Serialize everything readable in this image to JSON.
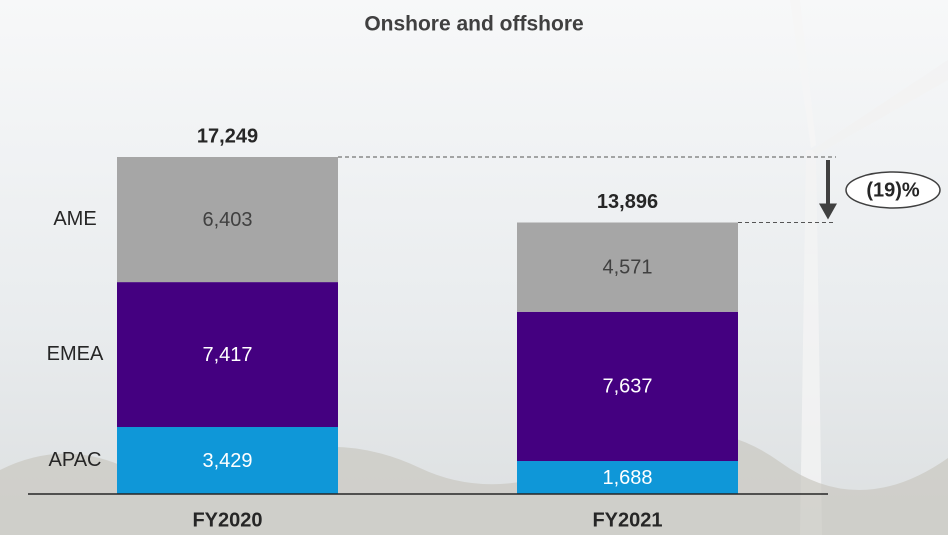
{
  "chart_data": {
    "type": "stacked-bar",
    "title": "Onshore and offshore",
    "categories": [
      "FY2020",
      "FY2021"
    ],
    "series": [
      {
        "name": "APAC",
        "color": "#0f97d8",
        "values": [
          3429,
          1688
        ],
        "value_labels": [
          "3,429",
          "1,688"
        ]
      },
      {
        "name": "EMEA",
        "color": "#440080",
        "values": [
          7417,
          7637
        ],
        "value_labels": [
          "7,417",
          "7,637"
        ]
      },
      {
        "name": "AME",
        "color": "#a6a6a6",
        "values": [
          6403,
          4571
        ],
        "value_labels": [
          "6,403",
          "4,571"
        ]
      }
    ],
    "totals": [
      17249,
      13896
    ],
    "total_labels": [
      "17,249",
      "13,896"
    ],
    "annotation": "(19)%"
  }
}
